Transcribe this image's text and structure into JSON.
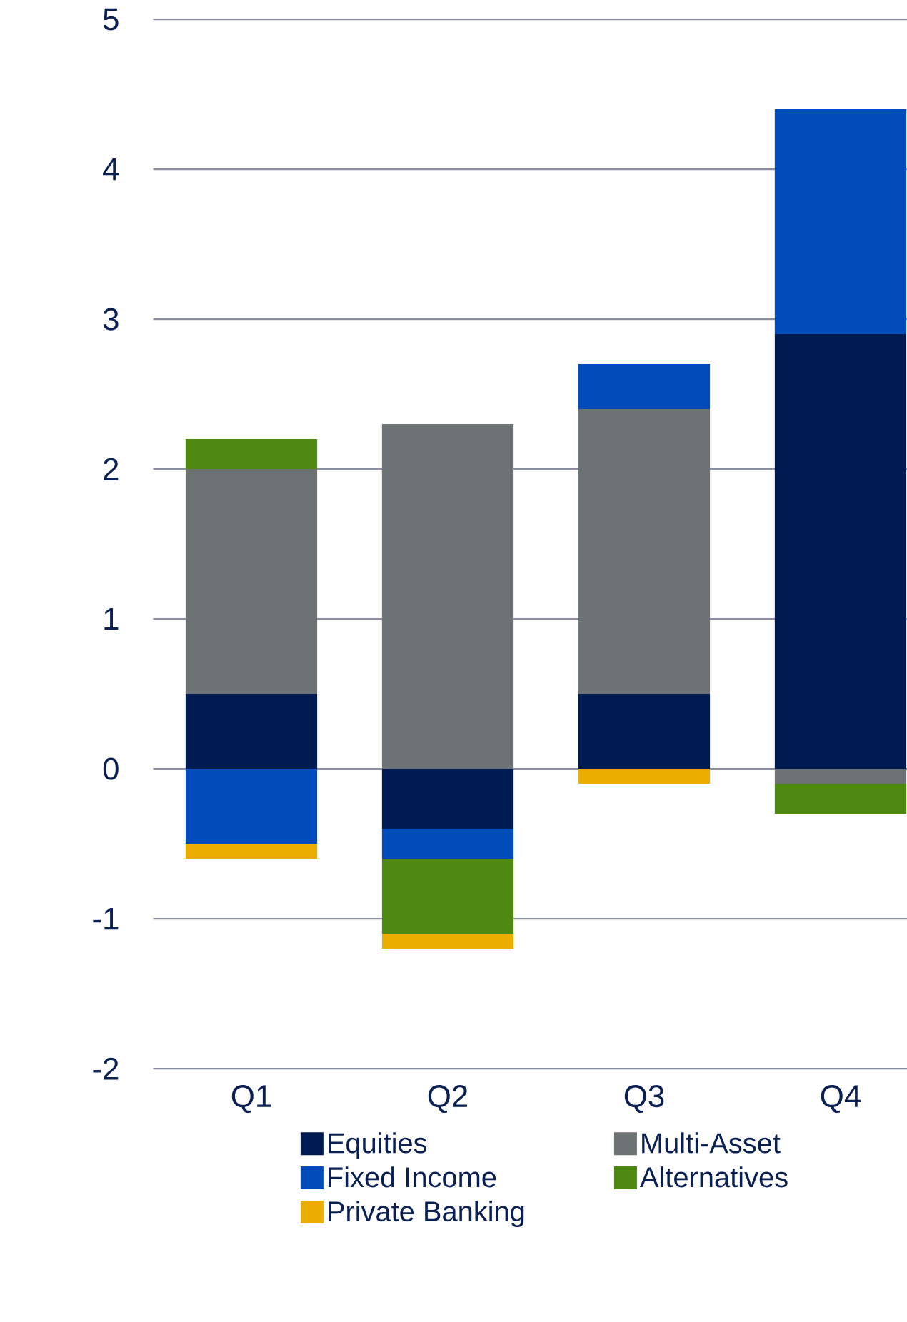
{
  "chart_data": {
    "type": "bar",
    "stacked": true,
    "categories": [
      "Q1",
      "Q2",
      "Q3",
      "Q4"
    ],
    "series": [
      {
        "name": "Equities",
        "color": "#001a52",
        "values": [
          0.5,
          -0.4,
          0.5,
          2.9
        ]
      },
      {
        "name": "Multi-Asset",
        "color": "#6d7274",
        "values": [
          1.5,
          2.3,
          1.9,
          -0.1
        ]
      },
      {
        "name": "Fixed Income",
        "color": "#004cbb",
        "values": [
          -0.5,
          -0.2,
          0.3,
          1.5
        ]
      },
      {
        "name": "Alternatives",
        "color": "#4e8a12",
        "values": [
          0.2,
          -0.5,
          0,
          -0.2
        ]
      },
      {
        "name": "Private Banking",
        "color": "#ebad00",
        "values": [
          -0.1,
          -0.1,
          -0.1,
          0
        ]
      }
    ],
    "ylim": [
      -2,
      5
    ],
    "yticks": [
      -2,
      -1,
      0,
      1,
      2,
      3,
      4,
      5
    ],
    "grid": "y",
    "legend": "bottom"
  }
}
